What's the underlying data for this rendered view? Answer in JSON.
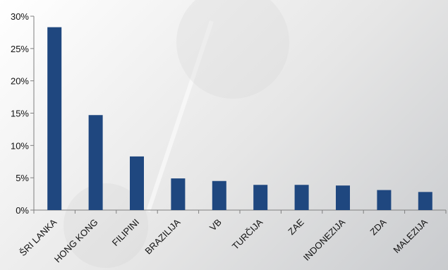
{
  "chart_data": {
    "type": "bar",
    "title": "",
    "xlabel": "",
    "ylabel": "",
    "categories": [
      "ŠRI LANKA",
      "HONG KONG",
      "FILIPINI",
      "BRAZILIJA",
      "VB",
      "TURČIJA",
      "ZAE",
      "INDONEZIJA",
      "ZDA",
      "MALEZIJA"
    ],
    "values": [
      28.3,
      14.7,
      8.3,
      4.9,
      4.5,
      3.9,
      3.9,
      3.8,
      3.1,
      2.8
    ],
    "ylim": [
      0,
      30
    ],
    "yticks": [
      0,
      5,
      10,
      15,
      20,
      25,
      30
    ],
    "ytick_labels": [
      "0%",
      "5%",
      "10%",
      "15%",
      "20%",
      "25%",
      "30%"
    ],
    "grid": false,
    "legend": "none",
    "bar_color": "#1f477f",
    "axis_color": "#7f7f7f"
  }
}
